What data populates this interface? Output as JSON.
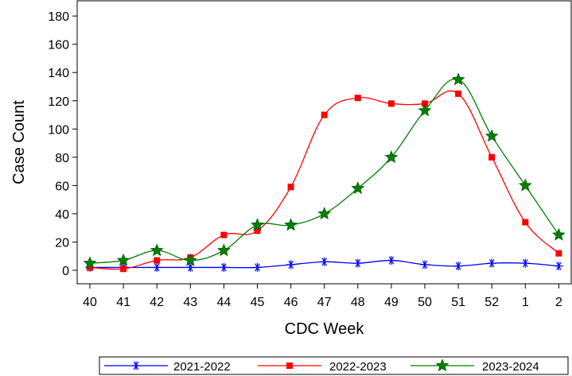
{
  "chart_data": {
    "type": "line",
    "title": "",
    "xlabel": "CDC Week",
    "ylabel": "Case Count",
    "categories": [
      "40",
      "41",
      "42",
      "43",
      "44",
      "45",
      "46",
      "47",
      "48",
      "49",
      "50",
      "51",
      "52",
      "1",
      "2"
    ],
    "ylim": [
      0,
      190
    ],
    "yticks": [
      0,
      20,
      40,
      60,
      80,
      100,
      120,
      140,
      160,
      180
    ],
    "grid": false,
    "legend_position": "bottom",
    "series": [
      {
        "name": "2021-2022",
        "color": "#0000ff",
        "marker": "asterisk",
        "values": [
          2,
          2,
          2,
          2,
          2,
          2,
          4,
          6,
          5,
          7,
          4,
          3,
          5,
          5,
          3
        ]
      },
      {
        "name": "2022-2023",
        "color": "#ff0000",
        "marker": "square",
        "values": [
          2,
          1,
          7,
          9,
          25,
          28,
          59,
          110,
          122,
          118,
          118,
          125,
          80,
          34,
          12
        ]
      },
      {
        "name": "2023-2024",
        "color": "#008000",
        "marker": "star",
        "values": [
          5,
          7,
          14,
          7,
          14,
          32,
          32,
          40,
          58,
          80,
          113,
          135,
          95,
          60,
          25
        ]
      }
    ]
  }
}
